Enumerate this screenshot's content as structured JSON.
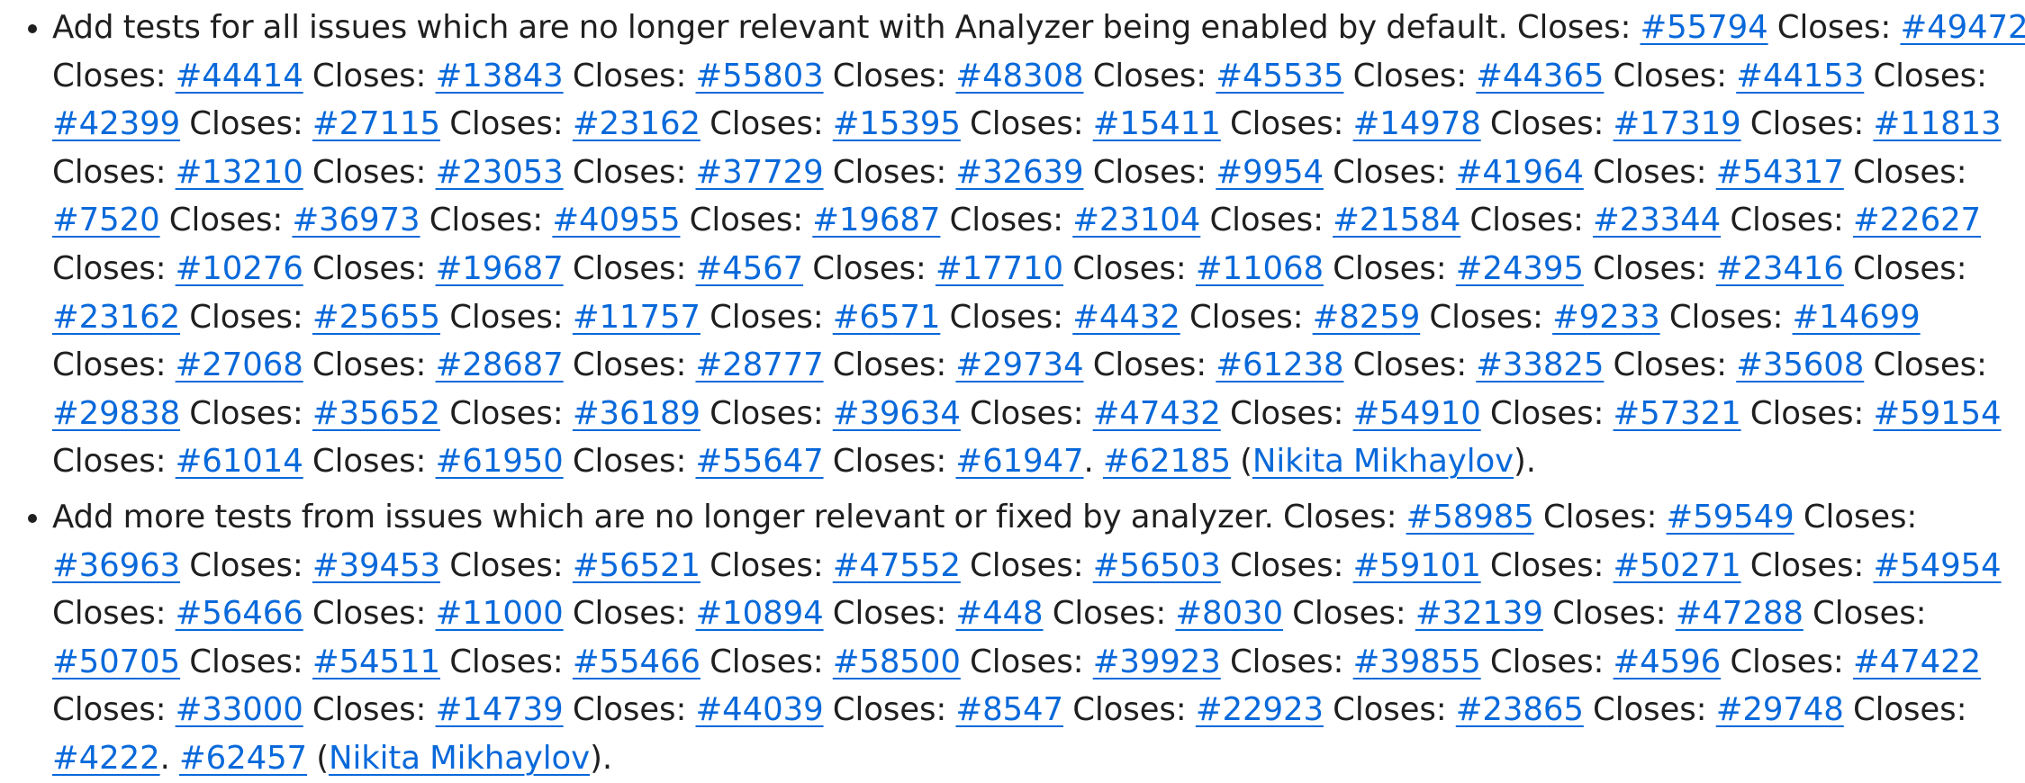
{
  "entries": [
    {
      "description": "Add tests for all issues which are no longer relevant with Analyzer being enabled by default.",
      "closes_label": "Closes:",
      "issues": [
        "#55794",
        "#49472",
        "#44414",
        "#13843",
        "#55803",
        "#48308",
        "#45535",
        "#44365",
        "#44153",
        "#42399",
        "#27115",
        "#23162",
        "#15395",
        "#15411",
        "#14978",
        "#17319",
        "#11813",
        "#13210",
        "#23053",
        "#37729",
        "#32639",
        "#9954",
        "#41964",
        "#54317",
        "#7520",
        "#36973",
        "#40955",
        "#19687",
        "#23104",
        "#21584",
        "#23344",
        "#22627",
        "#10276",
        "#19687",
        "#4567",
        "#17710",
        "#11068",
        "#24395",
        "#23416",
        "#23162",
        "#25655",
        "#11757",
        "#6571",
        "#4432",
        "#8259",
        "#9233",
        "#14699",
        "#27068",
        "#28687",
        "#28777",
        "#29734",
        "#61238",
        "#33825",
        "#35608",
        "#29838",
        "#35652",
        "#36189",
        "#39634",
        "#47432",
        "#54910",
        "#57321",
        "#59154",
        "#61014",
        "#61950",
        "#55647",
        "#61947"
      ],
      "pr": "#62185",
      "author": "Nikita Mikhaylov"
    },
    {
      "description": "Add more tests from issues which are no longer relevant or fixed by analyzer.",
      "closes_label": "Closes:",
      "issues": [
        "#58985",
        "#59549",
        "#36963",
        "#39453",
        "#56521",
        "#47552",
        "#56503",
        "#59101",
        "#50271",
        "#54954",
        "#56466",
        "#11000",
        "#10894",
        "#448",
        "#8030",
        "#32139",
        "#47288",
        "#50705",
        "#54511",
        "#55466",
        "#58500",
        "#39923",
        "#39855",
        "#4596",
        "#47422",
        "#33000",
        "#14739",
        "#44039",
        "#8547",
        "#22923",
        "#23865",
        "#29748",
        "#4222"
      ],
      "pr": "#62457",
      "author": "Nikita Mikhaylov"
    }
  ]
}
